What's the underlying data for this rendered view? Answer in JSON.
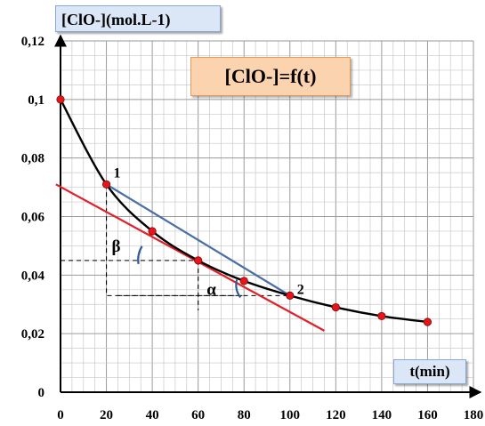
{
  "chart_data": {
    "type": "scatter",
    "title": "[ClO-]=f(t)",
    "ylabel": "[ClO-](mol.L-1)",
    "xlabel": "t(min)",
    "xlim": [
      0,
      180
    ],
    "ylim": [
      0,
      0.12
    ],
    "x_ticks": [
      "0",
      "20",
      "40",
      "60",
      "80",
      "100",
      "120",
      "140",
      "160",
      "180"
    ],
    "y_ticks": [
      "0",
      "0,02",
      "0,04",
      "0,06",
      "0,08",
      "0,1",
      "0,12"
    ],
    "grid": true,
    "points": [
      {
        "x": 0,
        "y": 0.1
      },
      {
        "x": 20,
        "y": 0.071
      },
      {
        "x": 40,
        "y": 0.055
      },
      {
        "x": 60,
        "y": 0.045
      },
      {
        "x": 80,
        "y": 0.038
      },
      {
        "x": 100,
        "y": 0.033
      },
      {
        "x": 120,
        "y": 0.029
      },
      {
        "x": 140,
        "y": 0.026
      },
      {
        "x": 160,
        "y": 0.024
      }
    ],
    "curve_color": "#000000",
    "point_color": "#e8141b",
    "tangent_line": {
      "color": "#e0202a",
      "points": [
        {
          "x": -2,
          "y": 0.071
        },
        {
          "x": 115,
          "y": 0.021
        }
      ]
    },
    "secant_line": {
      "color": "#4a6fa5",
      "points": [
        {
          "x": 20,
          "y": 0.071
        },
        {
          "x": 100,
          "y": 0.033
        }
      ]
    },
    "dashed_guides": [
      {
        "points": [
          {
            "x": 20,
            "y": 0.071
          },
          {
            "x": 20,
            "y": 0.033
          },
          {
            "x": 100,
            "y": 0.033
          }
        ]
      },
      {
        "points": [
          {
            "x": 0,
            "y": 0.045
          },
          {
            "x": 60,
            "y": 0.045
          }
        ]
      },
      {
        "points": [
          {
            "x": 60,
            "y": 0.045
          },
          {
            "x": 60,
            "y": 0.028
          }
        ]
      },
      {
        "points": [
          {
            "x": 25,
            "y": 0.033
          },
          {
            "x": 80,
            "y": 0.033
          }
        ]
      }
    ],
    "annotations": [
      {
        "text": "1",
        "x": 20,
        "y": 0.071
      },
      {
        "text": "2",
        "x": 100,
        "y": 0.033
      },
      {
        "text": "β",
        "x": 20,
        "y": 0.045
      },
      {
        "text": "α",
        "x": 80,
        "y": 0.033
      }
    ]
  }
}
